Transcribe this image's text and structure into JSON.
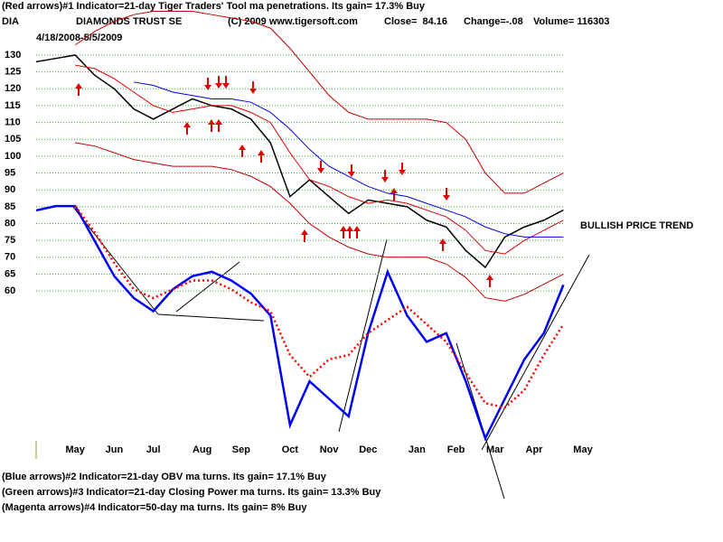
{
  "chart_data": {
    "type": "line",
    "header": "(Red arrows)#1 Indicator=21-day Tiger Traders' Tool ma penetrations. Its gain= 17.3% Buy",
    "symbol": "DIA",
    "title": "DIAMONDS TRUST SE",
    "copyright": "(C) 2009 www.tigersoft.com",
    "close": "Close=  84.16",
    "change": "Change=-.08",
    "volume": "Volume= 116303",
    "date_range": "4/18/2008-5/5/2009",
    "annotation": "BULLISH PRICE TREND",
    "footer": [
      "(Blue arrows)#2 Indicator=21-day OBV ma turns. Its gain= 17.1% Buy",
      "(Green arrows)#3 Indicator=21-day Closing Power ma turns. Its gain= 13.3% Buy",
      "(Magenta arrows)#4 Indicator=50-day ma turns. Its gain= 8% Buy"
    ],
    "x": [
      0,
      2,
      4,
      6,
      8,
      10,
      12,
      14,
      16,
      18,
      20,
      22,
      24,
      26,
      28,
      30,
      32,
      34,
      36,
      38,
      40,
      42,
      44,
      46,
      48,
      50,
      52,
      54
    ],
    "xlim": [
      0,
      56
    ],
    "xticks": [
      {
        "value": 4,
        "label": "May"
      },
      {
        "value": 8,
        "label": "Jun"
      },
      {
        "value": 12,
        "label": "Jul"
      },
      {
        "value": 17,
        "label": "Aug"
      },
      {
        "value": 21,
        "label": "Sep"
      },
      {
        "value": 26,
        "label": "Oct"
      },
      {
        "value": 30,
        "label": "Nov"
      },
      {
        "value": 34,
        "label": "Dec"
      },
      {
        "value": 39,
        "label": "Jan"
      },
      {
        "value": 43,
        "label": "Feb"
      },
      {
        "value": 47,
        "label": "Mar"
      },
      {
        "value": 51,
        "label": "Apr"
      },
      {
        "value": 56,
        "label": "May"
      }
    ],
    "ylim": [
      15,
      145
    ],
    "yticks": [
      60,
      65,
      70,
      75,
      80,
      85,
      90,
      95,
      100,
      105,
      110,
      115,
      120,
      125,
      130
    ],
    "y2lim": [
      0,
      100
    ],
    "grid": true,
    "series": [
      {
        "name": "DIA",
        "color": "#000000",
        "width": 1.5,
        "values": [
          128,
          129,
          130,
          124,
          120,
          114,
          111,
          114,
          117,
          115,
          114,
          111,
          104,
          88,
          93,
          88,
          83,
          87,
          86,
          85,
          81,
          79,
          72,
          67,
          76,
          79,
          81,
          84
        ]
      },
      {
        "name": "21-day ma",
        "color": "#e00000",
        "width": 1,
        "values": [
          null,
          null,
          127,
          126,
          123,
          119,
          115,
          113,
          114,
          115,
          115,
          113,
          110,
          101,
          93,
          91,
          88,
          86,
          87,
          86,
          84,
          82,
          78,
          72,
          71,
          75,
          78,
          81
        ]
      },
      {
        "name": "50-day ma",
        "color": "#0000e0",
        "width": 1,
        "values": [
          null,
          null,
          null,
          null,
          null,
          122,
          121,
          119,
          118,
          117,
          117,
          116,
          113,
          108,
          102,
          97,
          94,
          91,
          89,
          88,
          86,
          84,
          82,
          79,
          77,
          76,
          76,
          76
        ]
      },
      {
        "name": "upper band",
        "color": "#c00000",
        "width": 1,
        "values": [
          null,
          null,
          133,
          137,
          140,
          142,
          143,
          143,
          143,
          142,
          141,
          140,
          138,
          132,
          125,
          118,
          113,
          111,
          111,
          111,
          111,
          110,
          105,
          95,
          89,
          89,
          92,
          95
        ]
      },
      {
        "name": "lower band",
        "color": "#c00000",
        "width": 1,
        "values": [
          null,
          null,
          104,
          103,
          101,
          99,
          98,
          97,
          97,
          97,
          96,
          94,
          91,
          86,
          80,
          76,
          73,
          71,
          70,
          70,
          70,
          68,
          64,
          58,
          57,
          59,
          62,
          65
        ]
      },
      {
        "name": "OBV",
        "color": "#0000ff",
        "width": 2.5,
        "axis": "y2",
        "values": [
          53,
          54,
          54,
          46,
          38,
          33,
          30,
          35,
          38,
          39,
          37,
          34,
          29,
          4,
          14,
          10,
          6,
          25,
          39,
          29,
          23,
          25,
          14,
          1,
          10,
          19,
          25,
          36
        ]
      },
      {
        "name": "OBV ma",
        "color": "#ff0000",
        "width": 2.5,
        "dash": "2 3",
        "axis": "y2",
        "values": [
          null,
          null,
          54,
          48,
          41,
          35,
          33,
          35,
          37,
          37,
          35,
          32,
          30,
          20,
          15,
          19,
          20,
          25,
          28,
          31,
          27,
          23,
          16,
          9,
          8,
          12,
          20,
          27
        ]
      }
    ]
  }
}
